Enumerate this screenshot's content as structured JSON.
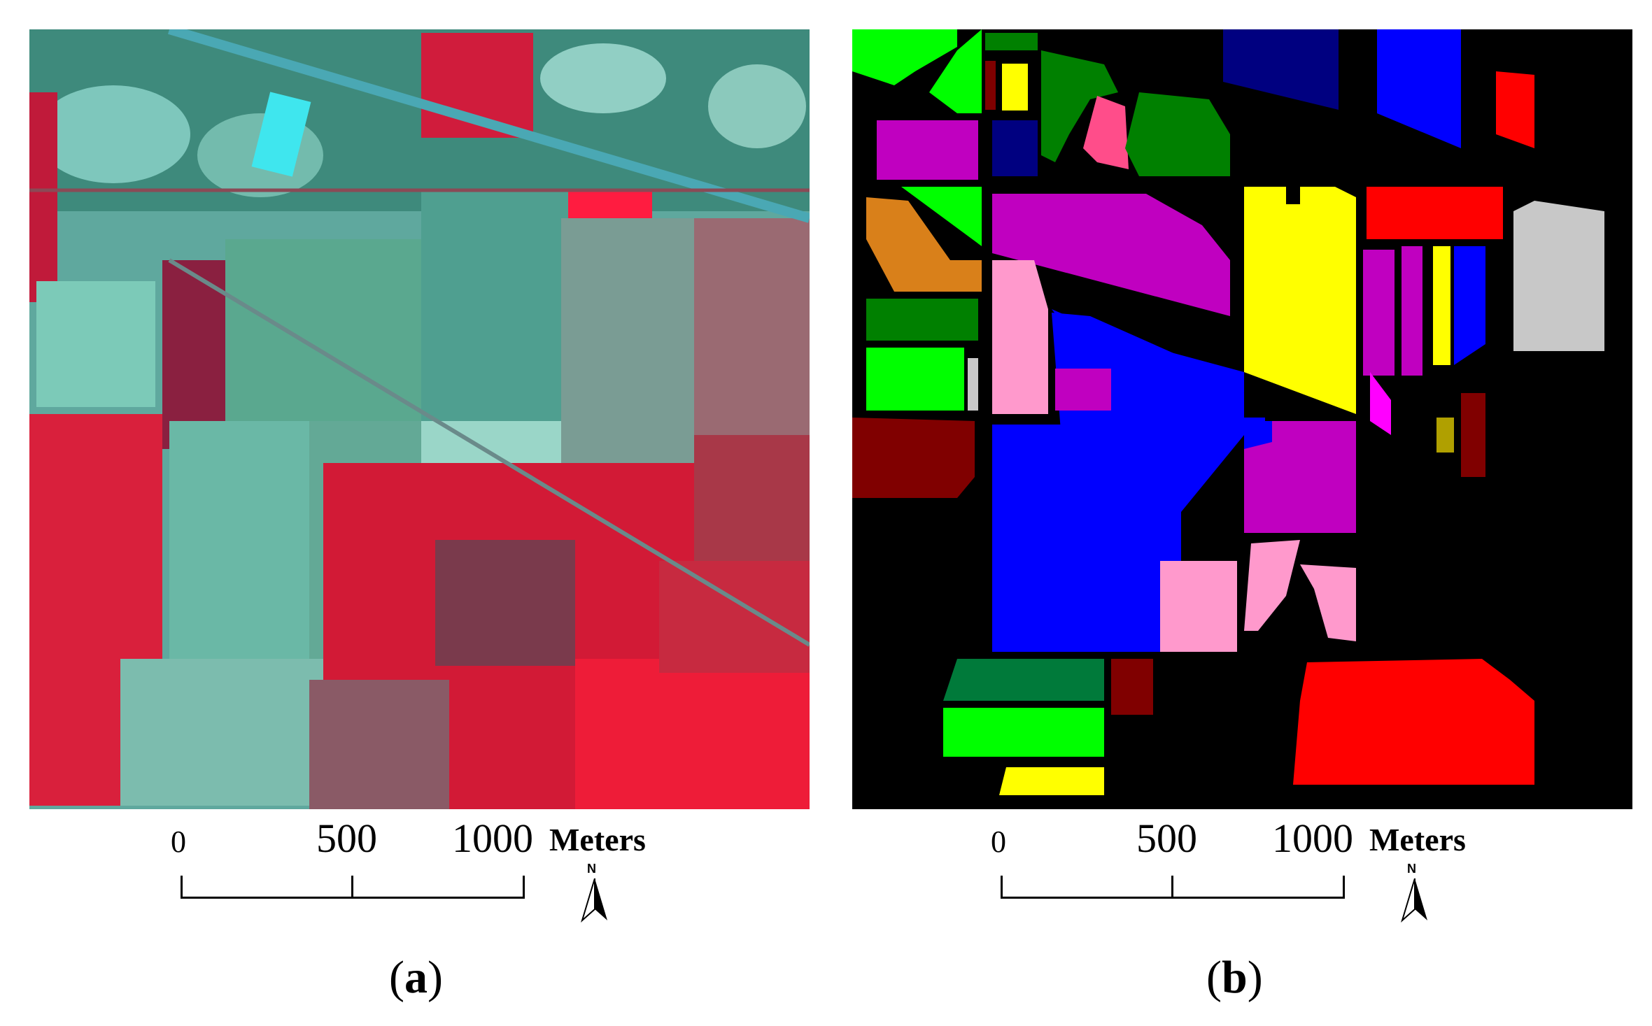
{
  "panels": [
    {
      "id": "a",
      "caption_open": "(",
      "caption_letter": "a",
      "caption_close": ")",
      "image_kind": "false-color infrared aerial image of agricultural fields"
    },
    {
      "id": "b",
      "caption_open": "(",
      "caption_letter": "b",
      "caption_close": ")",
      "image_kind": "ground-truth land-cover class map"
    }
  ],
  "scalebar": {
    "ticks": [
      "0",
      "500",
      "1000"
    ],
    "units": "Meters",
    "north_label": "N"
  },
  "colors": {
    "background_b": "#000000",
    "red_field": "#ff0000",
    "vegetation_red": "#e0203a",
    "soil_cyan": "#5fb0a4",
    "blue": "#0000ff",
    "navy": "#000080",
    "green": "#00ff00",
    "dark_green": "#008000",
    "magenta": "#c000c0",
    "pink": "#ff99cc",
    "yellow": "#ffff00",
    "orange": "#d9801a",
    "maroon": "#800000",
    "gray": "#c8c8c8"
  }
}
